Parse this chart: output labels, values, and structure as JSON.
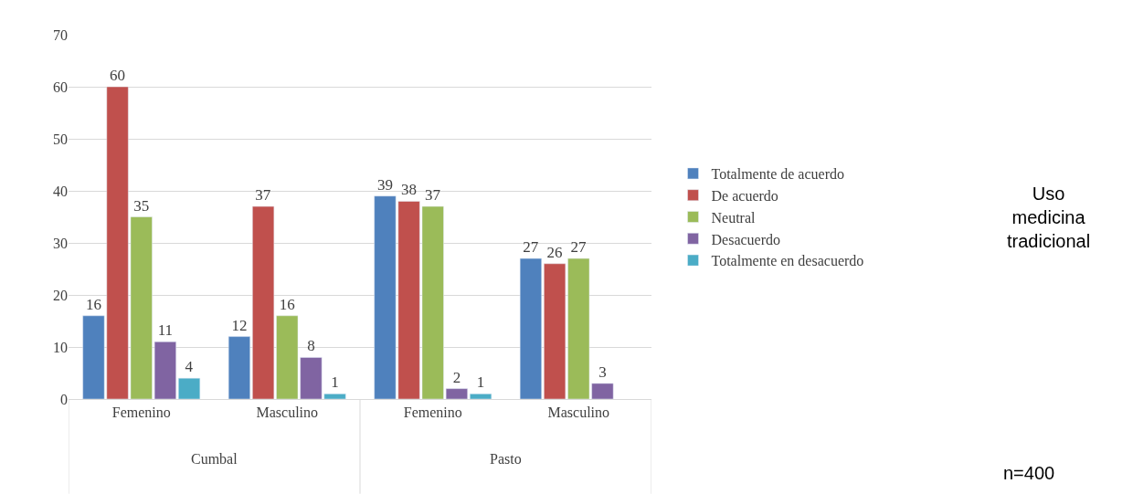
{
  "chart_data": {
    "type": "bar",
    "categories": [
      "Femenino",
      "Masculino",
      "Femenino",
      "Masculino"
    ],
    "series": [
      {
        "name": "Totalmente de acuerdo",
        "color": "#4f81bd",
        "values": [
          16,
          12,
          39,
          27
        ]
      },
      {
        "name": "De acuerdo",
        "color": "#c0504d",
        "values": [
          60,
          37,
          38,
          26
        ]
      },
      {
        "name": "Neutral",
        "color": "#9bbb59",
        "values": [
          35,
          16,
          37,
          27
        ]
      },
      {
        "name": "Desacuerdo",
        "color": "#8064a2",
        "values": [
          11,
          8,
          2,
          3
        ]
      },
      {
        "name": "Totalmente en desacuerdo",
        "color": "#4bacc6",
        "values": [
          4,
          1,
          1,
          null
        ]
      }
    ],
    "ylim": [
      0,
      70
    ],
    "yticks": [
      0,
      10,
      20,
      30,
      40,
      50,
      60,
      70
    ],
    "grid": "y",
    "legend": "right",
    "data_labels": true,
    "annotations": [
      "Cumbal",
      "Pasto",
      "Uso medicina tradicional",
      "n=400"
    ]
  }
}
